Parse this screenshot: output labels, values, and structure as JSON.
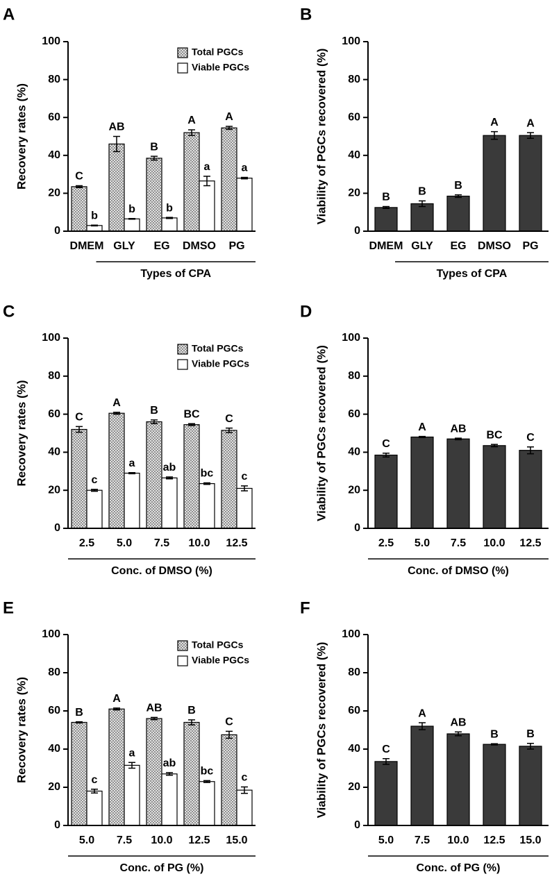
{
  "chart_data": [
    {
      "type": "bar",
      "panel": "A",
      "ylabel": "Recovery rates (%)",
      "xlabel": "Types of CPA",
      "categories": [
        "DMEM",
        "GLY",
        "EG",
        "DMSO",
        "PG"
      ],
      "series": [
        {
          "name": "Total PGCs",
          "color": "#d0d0d0",
          "pattern": "dots",
          "values": [
            23.5,
            46,
            38.5,
            52,
            54.5
          ],
          "errors": [
            0.5,
            4,
            1,
            1.5,
            0.8
          ],
          "letters": [
            "C",
            "AB",
            "B",
            "A",
            "A"
          ]
        },
        {
          "name": "Viable PGCs",
          "color": "#ffffff",
          "values": [
            3,
            6.5,
            7,
            26.5,
            28
          ],
          "errors": [
            0.2,
            0.2,
            0.3,
            2.5,
            0.4
          ],
          "letters": [
            "b",
            "b",
            "b",
            "a",
            "a"
          ]
        }
      ],
      "ylim": [
        0,
        100
      ],
      "yticks": [
        0,
        20,
        40,
        60,
        80,
        100
      ],
      "legend": "upper right"
    },
    {
      "type": "bar",
      "panel": "B",
      "ylabel": "Viability of PGCs recovered (%)",
      "xlabel": "Types of CPA",
      "categories": [
        "DMEM",
        "GLY",
        "EG",
        "DMSO",
        "PG"
      ],
      "color": "#3a3a3a",
      "values": [
        12.5,
        14.5,
        18.5,
        50.5,
        50.5
      ],
      "errors": [
        0.5,
        1.5,
        0.7,
        2,
        1.5
      ],
      "letters": [
        "B",
        "B",
        "B",
        "A",
        "A"
      ],
      "ylim": [
        0,
        100
      ],
      "yticks": [
        0,
        20,
        40,
        60,
        80,
        100
      ]
    },
    {
      "type": "bar",
      "panel": "C",
      "ylabel": "Recovery rates (%)",
      "xlabel": "Conc. of DMSO (%)",
      "categories": [
        "2.5",
        "5.0",
        "7.5",
        "10.0",
        "12.5"
      ],
      "series": [
        {
          "name": "Total PGCs",
          "color": "#d0d0d0",
          "pattern": "dots",
          "values": [
            52,
            60.5,
            56,
            54.5,
            51.5
          ],
          "errors": [
            1.5,
            0.5,
            1,
            0.5,
            1.2
          ],
          "letters": [
            "C",
            "A",
            "B",
            "BC",
            "C"
          ]
        },
        {
          "name": "Viable PGCs",
          "color": "#ffffff",
          "values": [
            20,
            29,
            26.5,
            23.5,
            21
          ],
          "errors": [
            0.5,
            0.3,
            0.5,
            0.4,
            1.3
          ],
          "letters": [
            "c",
            "a",
            "ab",
            "bc",
            "c"
          ]
        }
      ],
      "ylim": [
        0,
        100
      ],
      "yticks": [
        0,
        20,
        40,
        60,
        80,
        100
      ],
      "legend": "upper right"
    },
    {
      "type": "bar",
      "panel": "D",
      "ylabel": "Viability of PGCs recovered (%)",
      "xlabel": "Conc. of DMSO (%)",
      "categories": [
        "2.5",
        "5.0",
        "7.5",
        "10.0",
        "12.5"
      ],
      "color": "#3a3a3a",
      "values": [
        38.5,
        48,
        47,
        43.5,
        41
      ],
      "errors": [
        1,
        0.3,
        0.4,
        0.6,
        1.8
      ],
      "letters": [
        "C",
        "A",
        "AB",
        "BC",
        "C"
      ],
      "ylim": [
        0,
        100
      ],
      "yticks": [
        0,
        20,
        40,
        60,
        80,
        100
      ]
    },
    {
      "type": "bar",
      "panel": "E",
      "ylabel": "Recovery rates (%)",
      "xlabel": "Conc. of PG (%)",
      "categories": [
        "5.0",
        "7.5",
        "10.0",
        "12.5",
        "15.0"
      ],
      "series": [
        {
          "name": "Total PGCs",
          "color": "#d0d0d0",
          "pattern": "dots",
          "values": [
            54,
            61,
            56,
            54,
            47.5
          ],
          "errors": [
            0.3,
            0.5,
            0.6,
            1.3,
            1.8
          ],
          "letters": [
            "B",
            "A",
            "AB",
            "B",
            "C"
          ]
        },
        {
          "name": "Viable PGCs",
          "color": "#ffffff",
          "values": [
            18,
            31.5,
            27,
            23,
            18.5
          ],
          "errors": [
            1,
            1.5,
            0.7,
            0.5,
            1.7
          ],
          "letters": [
            "c",
            "a",
            "ab",
            "bc",
            "c"
          ]
        }
      ],
      "ylim": [
        0,
        100
      ],
      "yticks": [
        0,
        20,
        40,
        60,
        80,
        100
      ],
      "legend": "upper right"
    },
    {
      "type": "bar",
      "panel": "F",
      "ylabel": "Viability of PGCs recovered (%)",
      "xlabel": "Conc. of PG (%)",
      "categories": [
        "5.0",
        "7.5",
        "10.0",
        "12.5",
        "15.0"
      ],
      "color": "#3a3a3a",
      "values": [
        33.5,
        52,
        48,
        42.5,
        41.5
      ],
      "errors": [
        1.5,
        1.8,
        1,
        0.3,
        1.5
      ],
      "letters": [
        "C",
        "A",
        "AB",
        "B",
        "B"
      ],
      "ylim": [
        0,
        100
      ],
      "yticks": [
        0,
        20,
        40,
        60,
        80,
        100
      ]
    }
  ]
}
